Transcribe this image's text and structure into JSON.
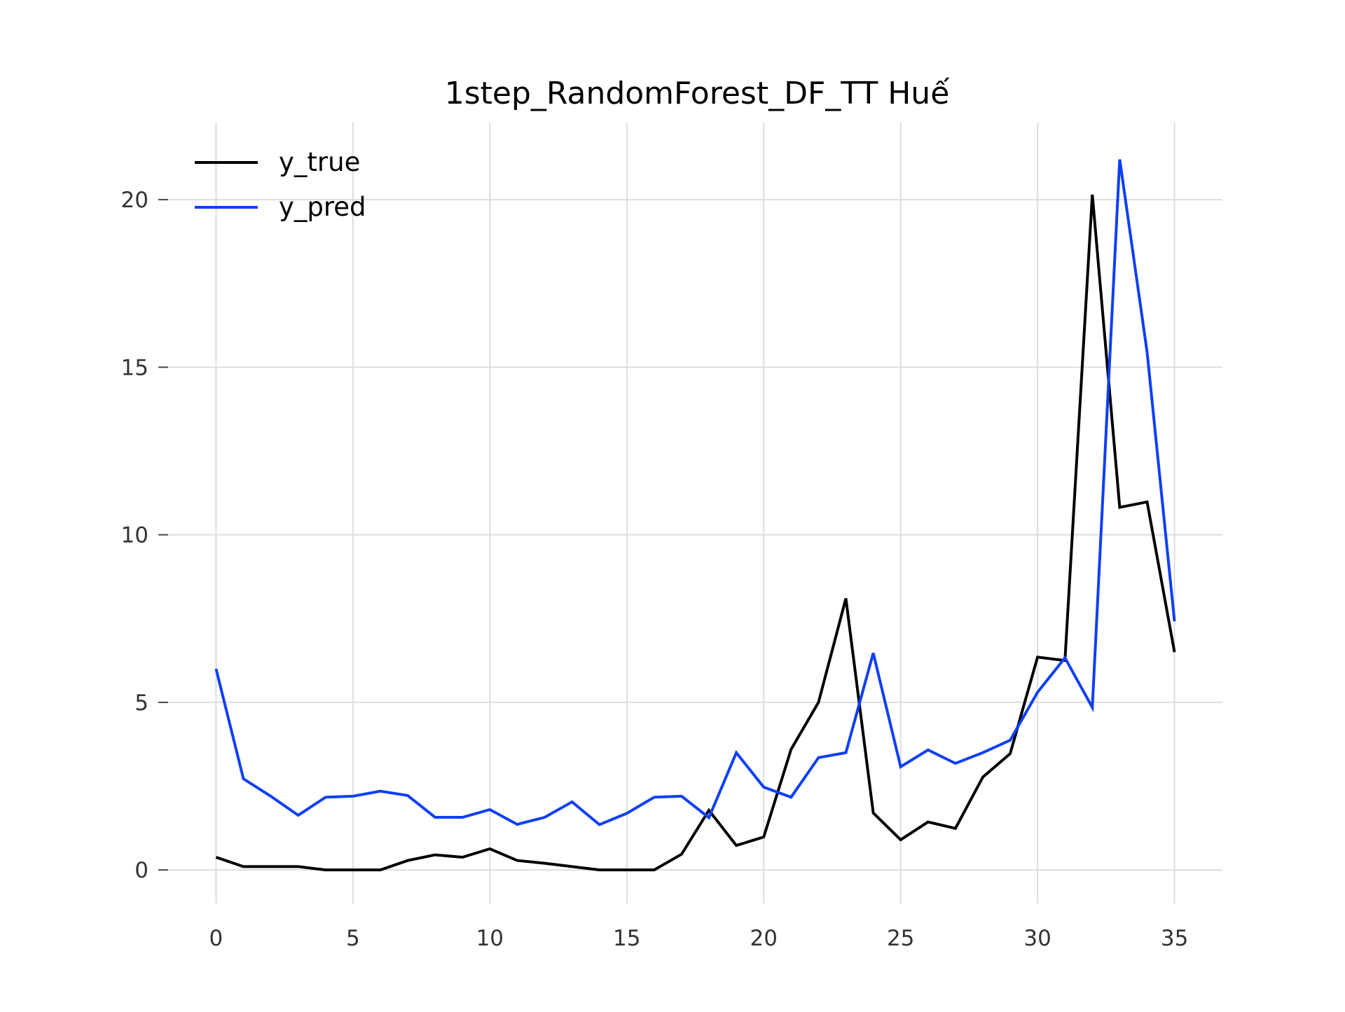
{
  "chart_data": {
    "type": "line",
    "title": "1step_RandomForest_DF_TT Huế",
    "xlabel": "",
    "ylabel": "",
    "xlim": [
      -1.75,
      36.75
    ],
    "ylim": [
      -1.0,
      22.3
    ],
    "x_ticks": [
      0,
      5,
      10,
      15,
      20,
      25,
      30,
      35
    ],
    "y_ticks": [
      0,
      5,
      10,
      15,
      20
    ],
    "grid": true,
    "legend_position": "top-left",
    "x": [
      0,
      1,
      2,
      3,
      4,
      5,
      6,
      7,
      8,
      9,
      10,
      11,
      12,
      13,
      14,
      15,
      16,
      17,
      18,
      19,
      20,
      21,
      22,
      23,
      24,
      25,
      26,
      27,
      28,
      29,
      30,
      31,
      32,
      33,
      34,
      35
    ],
    "series": [
      {
        "name": "y_true",
        "color": "#000000",
        "values": [
          0.38,
          0.1,
          0.1,
          0.1,
          0.0,
          0.0,
          0.0,
          0.28,
          0.45,
          0.38,
          0.63,
          0.28,
          0.2,
          0.1,
          0.0,
          0.0,
          0.0,
          0.47,
          1.78,
          0.73,
          0.98,
          3.6,
          5.0,
          8.1,
          1.7,
          0.9,
          1.43,
          1.24,
          2.77,
          3.47,
          6.35,
          6.25,
          20.15,
          10.82,
          10.98,
          6.5
        ]
      },
      {
        "name": "y_pred",
        "color": "#0f3ff5",
        "values": [
          6.0,
          2.72,
          2.2,
          1.63,
          2.17,
          2.2,
          2.35,
          2.22,
          1.57,
          1.57,
          1.8,
          1.36,
          1.57,
          2.03,
          1.35,
          1.69,
          2.17,
          2.2,
          1.56,
          3.5,
          2.47,
          2.17,
          3.35,
          3.5,
          6.47,
          3.08,
          3.58,
          3.18,
          3.5,
          3.87,
          5.3,
          6.33,
          4.85,
          21.2,
          15.45,
          7.42
        ]
      }
    ]
  }
}
